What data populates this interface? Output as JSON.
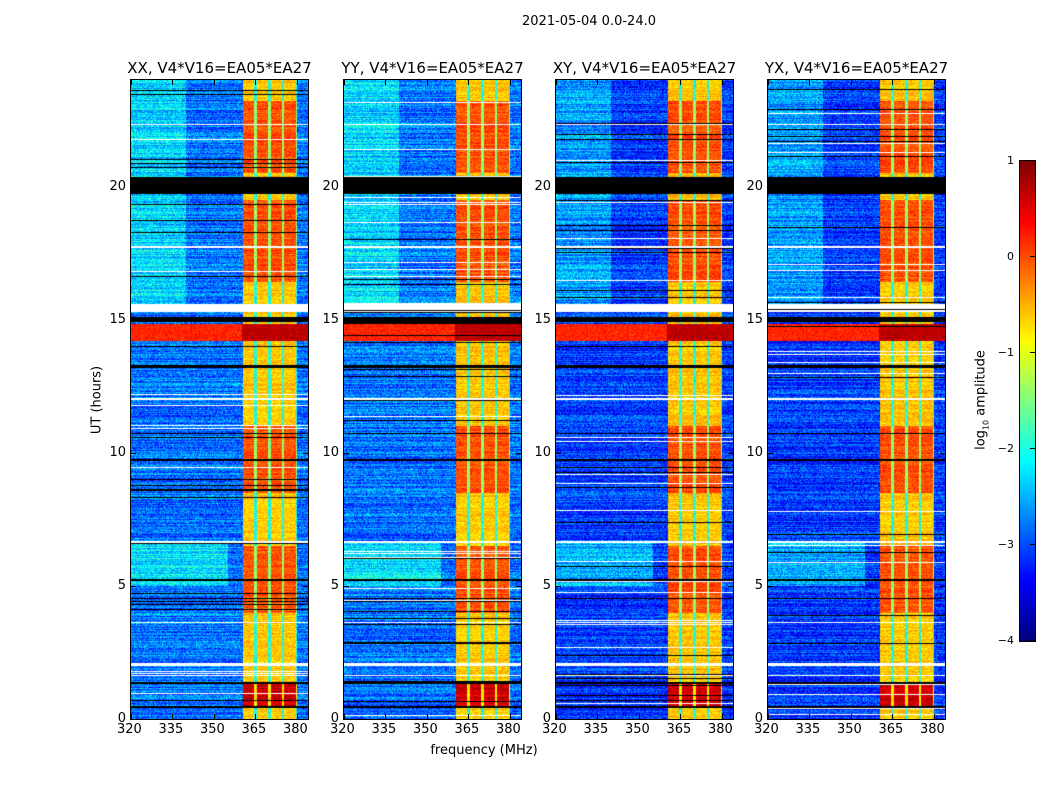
{
  "chart_data": {
    "type": "heatmap",
    "title": "2021-05-04 0.0-24.0",
    "xlabel": "frequency (MHz)",
    "ylabel": "UT (hours)",
    "xlim": [
      320,
      384
    ],
    "ylim": [
      0,
      24
    ],
    "xticks": [
      320,
      335,
      350,
      365,
      380
    ],
    "yticks": [
      0,
      5,
      10,
      15,
      20
    ],
    "panels": [
      {
        "title": "XX, V4*V16=EA05*EA27"
      },
      {
        "title": "YY, V4*V16=EA05*EA27"
      },
      {
        "title": "XY, V4*V16=EA05*EA27"
      },
      {
        "title": "YX, V4*V16=EA05*EA27"
      }
    ],
    "colorbar": {
      "label_prefix": "log",
      "label_sub": "10",
      "label_suffix": " amplitude",
      "range": [
        -4,
        1
      ],
      "ticks": [
        -4,
        -3,
        -2,
        -1,
        0,
        1
      ],
      "colormap": "jet"
    },
    "features": {
      "rfi_band_mhz": [
        360.5,
        380
      ],
      "rfi_band_dividers_mhz": [
        365,
        370,
        375,
        380
      ],
      "flagged_black_hours": [
        [
          19.7,
          20.35
        ],
        [
          14.9,
          15.1
        ],
        [
          13.2,
          13.3
        ],
        [
          1.3,
          1.4
        ],
        [
          0.4,
          0.5
        ],
        [
          10.7,
          10.75
        ],
        [
          9.7,
          9.75
        ],
        [
          4.5,
          4.55
        ],
        [
          5.2,
          5.25
        ]
      ],
      "blank_white_hours": [
        [
          15.3,
          15.6
        ],
        [
          2.0,
          2.1
        ],
        [
          6.6,
          6.7
        ],
        [
          1.6,
          1.65
        ],
        [
          3.6,
          3.65
        ],
        [
          12.0,
          12.05
        ],
        [
          17.7,
          17.75
        ],
        [
          22.3,
          22.35
        ]
      ],
      "strong_band_hours": [
        [
          20.5,
          23.2
        ],
        [
          16.4,
          19.5
        ],
        [
          8.5,
          11
        ],
        [
          4,
          6.5
        ],
        [
          0.5,
          1.3
        ]
      ],
      "broadband_rfi_hours": [
        14.2,
        14.85
      ],
      "typical_log_amplitude_background": -2.8,
      "typical_log_amplitude_band": -0.6,
      "peak_log_amplitude": 1
    }
  }
}
